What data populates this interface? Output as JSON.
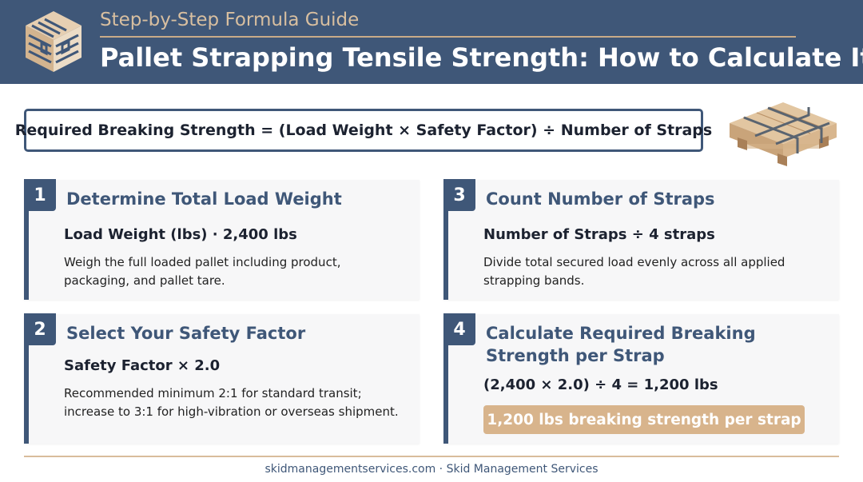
{
  "header": {
    "subtitle": "Step-by-Step Formula Guide",
    "title": "Pallet Strapping Tensile Strength: How to Calculate It"
  },
  "formula": "Required Breaking Strength = (Load Weight × Safety Factor) ÷ Number of Straps",
  "steps": [
    {
      "number": "1",
      "title": "Determine Total Load Weight",
      "value": "Load Weight (lbs) · 2,400 lbs",
      "description": "Weigh the full loaded pallet including product, packaging, and pallet tare."
    },
    {
      "number": "2",
      "title": "Select Your Safety Factor",
      "value": "Safety Factor × 2.0",
      "description": "Recommended minimum 2:1 for standard transit; increase to 3:1 for high-vibration or overseas shipment."
    },
    {
      "number": "3",
      "title": "Count Number of Straps",
      "value": "Number of Straps ÷ 4 straps",
      "description": "Divide total secured load evenly across all applied strapping bands."
    },
    {
      "number": "4",
      "title": "Calculate Required Breaking Strength per Strap",
      "value": "(2,400 × 2.0) ÷ 4 = 1,200 lbs",
      "result": "1,200 lbs breaking strength per strap"
    }
  ],
  "footer": "skidmanagementservices.com · Skid Management Services",
  "colors": {
    "navy": "#3f5778",
    "tan": "#d8b48c",
    "card_bg": "#f7f7f8"
  },
  "icons": {
    "logo": "pallet-stack-logo-icon",
    "illustration": "strapped-pallet-icon"
  }
}
